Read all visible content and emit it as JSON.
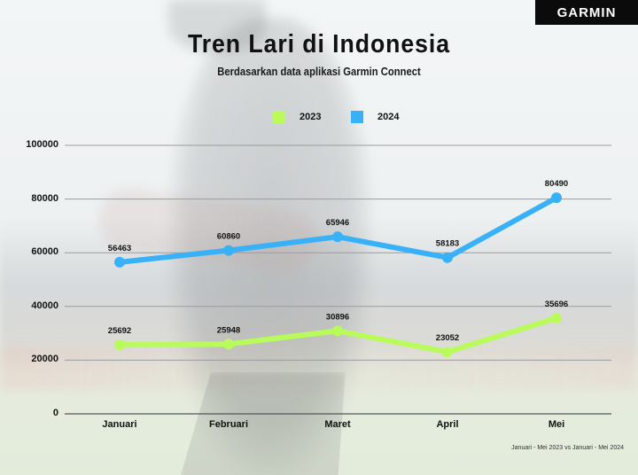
{
  "brand": {
    "logo_text": "GARMIN",
    "logo_bg": "#0b0b0b"
  },
  "header": {
    "title": "Tren Lari di Indonesia",
    "subtitle": "Berdasarkan data aplikasi Garmin Connect"
  },
  "legend": [
    {
      "label": "2023",
      "color": "#b9fb5a"
    },
    {
      "label": "2024",
      "color": "#39b1f8"
    }
  ],
  "axes": {
    "y_ticks": [
      "100000",
      "80000",
      "60000",
      "40000",
      "20000",
      "0"
    ],
    "x_ticks": [
      "Januari",
      "Februari",
      "Maret",
      "April",
      "Mei"
    ]
  },
  "footnote": "Januari - Mei 2023 vs Januari - Mei 2024",
  "chart_data": {
    "type": "line",
    "title": "Tren Lari di Indonesia",
    "subtitle": "Berdasarkan data aplikasi Garmin Connect",
    "categories": [
      "Januari",
      "Februari",
      "Maret",
      "April",
      "Mei"
    ],
    "series": [
      {
        "name": "2023",
        "color": "#b9fb5a",
        "values": [
          25692,
          25948,
          30896,
          23052,
          35696
        ]
      },
      {
        "name": "2024",
        "color": "#39b1f8",
        "values": [
          56463,
          60860,
          65946,
          58183,
          80490
        ]
      }
    ],
    "xlabel": "",
    "ylabel": "",
    "ylim": [
      0,
      100000
    ],
    "yticks": [
      0,
      20000,
      40000,
      60000,
      80000,
      100000
    ],
    "grid": true,
    "legend_position": "top-center",
    "data_labels": true,
    "annotation": "Januari - Mei 2023 vs Januari - Mei 2024"
  }
}
